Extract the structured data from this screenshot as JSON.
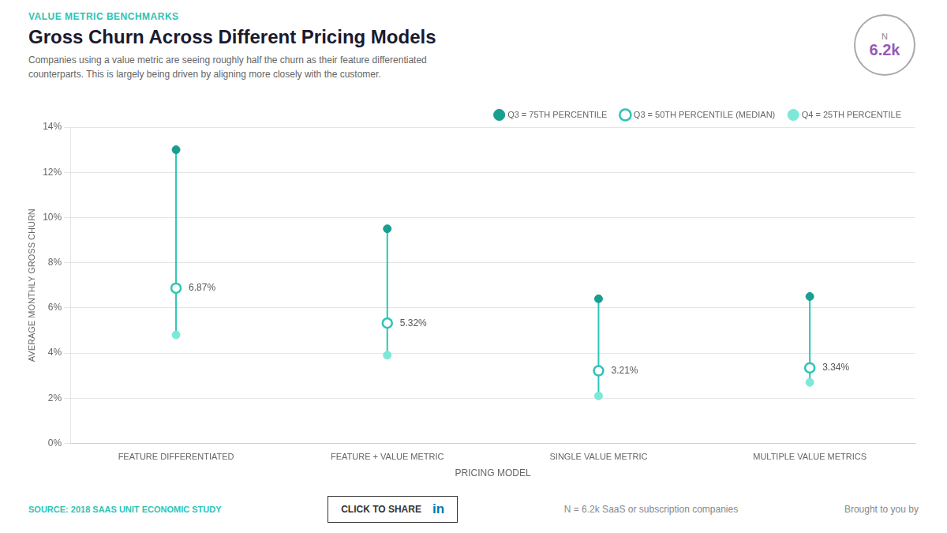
{
  "chart_data": {
    "type": "dot",
    "title": "Gross Churn Across Different Pricing Models",
    "subtitle": "VALUE METRIC BENCHMARKS",
    "xlabel": "PRICING MODEL",
    "ylabel": "AVERAGE MONTHLY GROSS CHURN",
    "categories": [
      "FEATURE DIFFERENTIATED",
      "FEATURE + VALUE METRIC",
      "SINGLE VALUE METRIC",
      "MULTIPLE VALUE METRICS"
    ],
    "series": [
      {
        "name": "Q3 = 75TH PERCENTILE",
        "color": "#1a9e8f",
        "marker": "circle",
        "values": [
          13.0,
          9.5,
          6.4,
          6.5
        ]
      },
      {
        "name": "Q3 = 50TH PERCENTILE (MEDIAN)",
        "color": "#2ec4b6",
        "marker": "open_circle",
        "data_labels": true,
        "values": [
          6.87,
          5.32,
          3.21,
          3.34
        ],
        "value_labels": [
          "6.87%",
          "5.32%",
          "3.21%",
          "3.34%"
        ]
      },
      {
        "name": "Q4 = 25TH PERCENTILE",
        "color": "#7de8d8",
        "marker": "circle",
        "values": [
          4.8,
          3.9,
          2.1,
          2.7
        ]
      }
    ],
    "color": "#2ec4b6",
    "ylim": [
      0,
      14
    ],
    "yticks": [
      {
        "value": 0,
        "label": "0%"
      },
      {
        "value": 2,
        "label": "2%"
      },
      {
        "value": 4,
        "label": "4%"
      },
      {
        "value": 6,
        "label": "6%"
      },
      {
        "value": 8,
        "label": "8%"
      },
      {
        "value": 10,
        "label": "10%"
      },
      {
        "value": 12,
        "label": "12%"
      },
      {
        "value": 14,
        "label": "14%"
      }
    ],
    "grid": true,
    "legend": "top-right",
    "annotations": [
      "Companies using a value metric are seeing roughly half the churn as their feature differentiated\ncounterparts. This is largely being driven by aligning more closely with the customer.",
      "N",
      "6.2k",
      "SOURCE: 2018 SAAS UNIT ECONOMIC STUDY",
      "N = 6.2k SaaS or subscription companies",
      "Brought to you by",
      "CLICK TO SHARE",
      "in"
    ]
  }
}
